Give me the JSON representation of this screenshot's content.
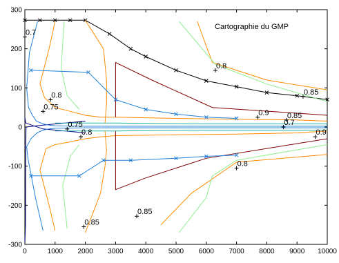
{
  "chart_data": {
    "type": "line",
    "title": "Cartographie du GMP",
    "xlabel": "",
    "ylabel": "",
    "xlim": [
      0,
      10000
    ],
    "ylim": [
      -300,
      300
    ],
    "x_ticks": [
      0,
      1000,
      2000,
      3000,
      4000,
      5000,
      6000,
      7000,
      8000,
      9000,
      10000
    ],
    "y_ticks": [
      -300,
      -200,
      -100,
      0,
      100,
      200,
      300
    ],
    "grid": false,
    "legend": "none",
    "series": [
      {
        "color": "#000000",
        "marker": "x",
        "x": [
          0,
          500,
          1000,
          1500,
          2000,
          2800,
          3500,
          4000,
          5000,
          6000,
          7000,
          8000,
          9000,
          10000
        ],
        "y": [
          273,
          273,
          273,
          273,
          273,
          238,
          200,
          180,
          145,
          118,
          103,
          88,
          80,
          70
        ]
      },
      {
        "color": "#000080",
        "x": [
          0,
          20,
          30,
          40,
          600,
          2000
        ],
        "y": [
          -300,
          -250,
          -50,
          0,
          5,
          15
        ]
      },
      {
        "color": "#000080",
        "x": [
          0,
          30,
          600,
          2000
        ],
        "y": [
          25,
          10,
          -5,
          -15
        ]
      },
      {
        "color": "#1e7fd8",
        "x": [
          420,
          150,
          60,
          120,
          250,
          380,
          600,
          800,
          1000,
          2000,
          5000,
          8000,
          10000
        ],
        "y": [
          270,
          190,
          100,
          50,
          30,
          15,
          8,
          5,
          3,
          2,
          2,
          2,
          2
        ]
      },
      {
        "color": "#1e7fd8",
        "x": [
          600,
          350,
          100,
          60,
          200,
          400,
          600,
          800,
          1000,
          2000,
          5000,
          8000,
          10000
        ],
        "y": [
          -265,
          -180,
          -80,
          -50,
          -30,
          -15,
          -8,
          -5,
          -3,
          -2,
          -2,
          -2,
          -2
        ]
      },
      {
        "color": "#20b2aa",
        "x": [
          1000,
          3000,
          6000,
          10000
        ],
        "y": [
          10,
          10,
          8,
          8
        ]
      },
      {
        "color": "#20b2aa",
        "x": [
          1000,
          3000,
          6000,
          10000
        ],
        "y": [
          -10,
          -10,
          -8,
          -8
        ]
      },
      {
        "color": "#ff8c00",
        "x": [
          1000,
          800,
          500,
          650,
          1000,
          1500,
          2000,
          2500,
          3000,
          5000,
          7000,
          9000,
          10000
        ],
        "y": [
          270,
          200,
          110,
          75,
          50,
          40,
          30,
          25,
          25,
          22,
          20,
          18,
          15
        ]
      },
      {
        "color": "#ff8c00",
        "x": [
          1000,
          800,
          500,
          700,
          1000,
          1500,
          2000,
          2500,
          3000,
          5000,
          7000,
          9000,
          10000
        ],
        "y": [
          -265,
          -200,
          -110,
          -55,
          -45,
          -38,
          -30,
          -25,
          -22,
          -20,
          -18,
          -15,
          -10
        ]
      },
      {
        "color": "#90ee90",
        "x": [
          1300,
          1200,
          1400,
          1800
        ],
        "y": [
          270,
          150,
          80,
          45
        ]
      },
      {
        "color": "#90ee90",
        "x": [
          1400,
          1250,
          1500,
          1800
        ],
        "y": [
          -260,
          -150,
          -75,
          -45
        ]
      },
      {
        "color": "#ff8c00",
        "x": [
          2000,
          2600,
          2700,
          2700,
          2650
        ],
        "y": [
          273,
          200,
          120,
          60,
          10
        ]
      },
      {
        "color": "#ff8c00",
        "x": [
          2000,
          2500,
          2650,
          2700,
          2650
        ],
        "y": [
          -270,
          -170,
          -100,
          -60,
          -10
        ]
      },
      {
        "color": "#800000",
        "x": [
          3000,
          3000,
          4200,
          6200,
          10000
        ],
        "y": [
          25,
          165,
          120,
          50,
          30
        ]
      },
      {
        "color": "#800000",
        "x": [
          3000,
          3000,
          4000,
          6000,
          10000
        ],
        "y": [
          -10,
          -160,
          -130,
          -80,
          -30
        ]
      },
      {
        "color": "#ff8c00",
        "x": [
          5700,
          6200,
          8000,
          10000
        ],
        "y": [
          270,
          165,
          120,
          95
        ]
      },
      {
        "color": "#ff8c00",
        "x": [
          4500,
          5500,
          7000,
          10000
        ],
        "y": [
          -250,
          -170,
          -90,
          -70
        ]
      },
      {
        "color": "#90ee90",
        "x": [
          5100,
          6300,
          8000,
          10000
        ],
        "y": [
          270,
          160,
          110,
          65
        ]
      },
      {
        "color": "#90ee90",
        "x": [
          5100,
          6000,
          6200,
          7000,
          10000
        ],
        "y": [
          -270,
          -180,
          -125,
          -85,
          -45
        ]
      },
      {
        "color": "#1e7fd8",
        "marker": "x",
        "x": [
          200,
          2100,
          3000,
          4000,
          5000,
          6000,
          7000
        ],
        "y": [
          145,
          140,
          70,
          45,
          33,
          25,
          22
        ]
      },
      {
        "color": "#1e7fd8",
        "marker": "x",
        "x": [
          200,
          1800,
          2600,
          3500,
          5000,
          6000,
          7000
        ],
        "y": [
          -125,
          -125,
          -85,
          -85,
          -80,
          -75,
          -72
        ]
      }
    ],
    "annotations": [
      {
        "text": "0.7",
        "x": 0,
        "y": 230
      },
      {
        "text": "0.8",
        "x": 850,
        "y": 70
      },
      {
        "text": "0.75",
        "x": 600,
        "y": 40
      },
      {
        "text": "0.75",
        "x": 1400,
        "y": -5
      },
      {
        "text": "0.8",
        "x": 1850,
        "y": -25
      },
      {
        "text": "0.8",
        "x": 6300,
        "y": 145
      },
      {
        "text": "0.85",
        "x": 9200,
        "y": 78
      },
      {
        "text": "0.9",
        "x": 7700,
        "y": 25
      },
      {
        "text": "0.85",
        "x": 8650,
        "y": 18
      },
      {
        "text": "0.7",
        "x": 8550,
        "y": 0
      },
      {
        "text": "0.9",
        "x": 9600,
        "y": -25
      },
      {
        "text": "0.8",
        "x": 7000,
        "y": -105
      },
      {
        "text": "0.85",
        "x": 3700,
        "y": -228
      },
      {
        "text": "0.85",
        "x": 1950,
        "y": -255
      }
    ]
  }
}
